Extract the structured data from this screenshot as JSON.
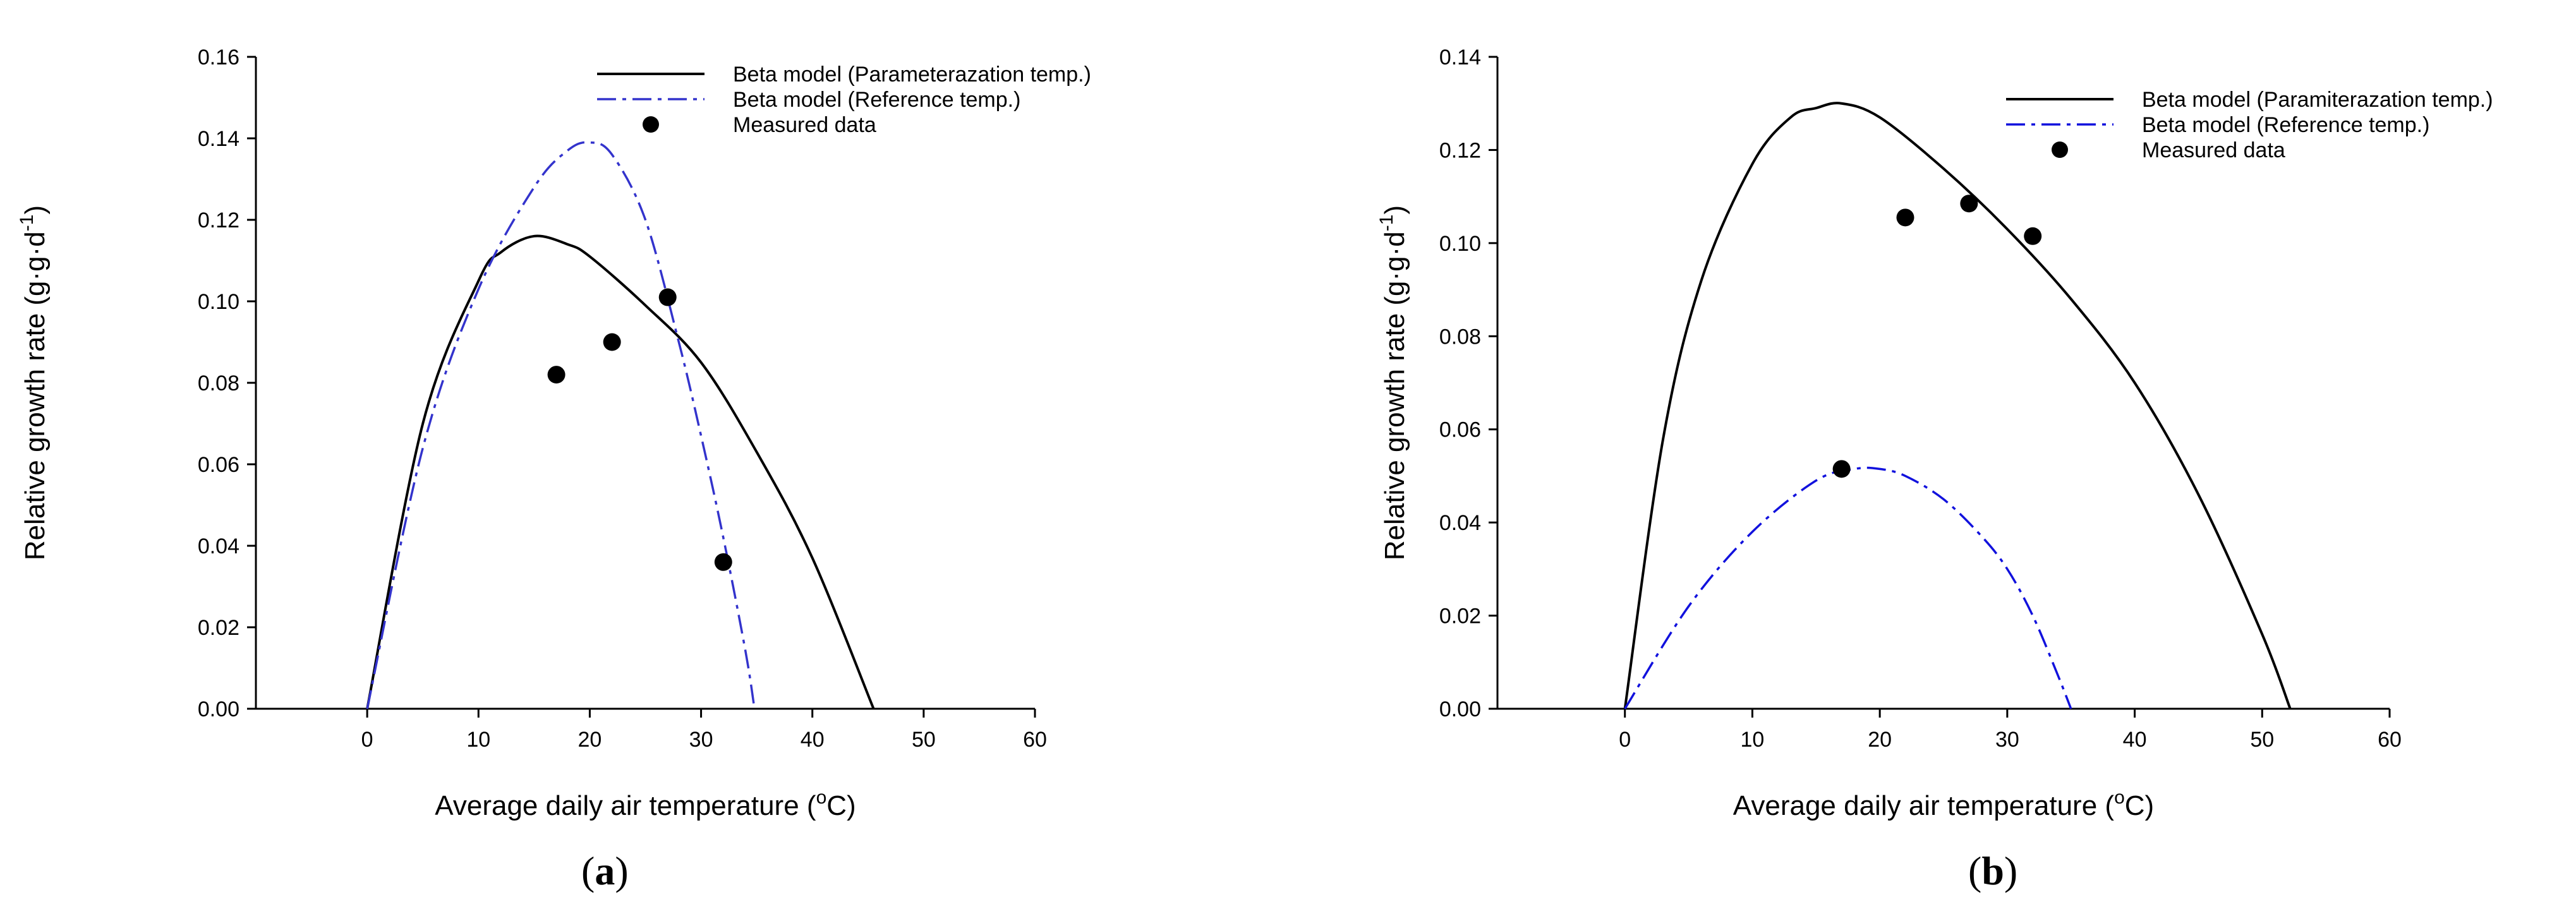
{
  "chart_data": [
    {
      "type": "line",
      "panel_label": "(a)",
      "panel_letter": "a",
      "xlabel": "Average daily air temperature (oC)",
      "xlabel_parts": [
        "Average daily air temperature (",
        "o",
        "C)"
      ],
      "ylabel": "Relative growth rate (g·g·d-1)",
      "ylabel_parts": [
        "Relative growth rate (g·g·d",
        "-1",
        ")"
      ],
      "xlim": [
        -10,
        60
      ],
      "ylim": [
        0,
        0.16
      ],
      "xticks": [
        0,
        10,
        20,
        30,
        40,
        50,
        60
      ],
      "xtick_labels": [
        "0",
        "10",
        "20",
        "30",
        "40",
        "50",
        "60"
      ],
      "yticks": [
        0,
        0.02,
        0.04,
        0.06,
        0.08,
        0.1,
        0.12,
        0.14,
        0.16
      ],
      "ytick_labels": [
        "0.00",
        "0.02",
        "0.04",
        "0.06",
        "0.08",
        "0.10",
        "0.12",
        "0.14",
        "0.16"
      ],
      "legend_position": "top-right",
      "grid": false,
      "series": [
        {
          "name": "Beta model (Parameterazation temp.)",
          "style": "solid",
          "color": "#000000",
          "x": [
            0,
            5,
            10,
            12,
            15,
            18,
            20,
            25,
            30,
            35,
            40,
            45.5
          ],
          "y": [
            0,
            0.07,
            0.105,
            0.112,
            0.116,
            0.114,
            0.111,
            0.099,
            0.085,
            0.063,
            0.037,
            0
          ]
        },
        {
          "name": "Beta model (Reference temp.)",
          "style": "dashdot",
          "color": "#3333cc",
          "x": [
            0,
            5,
            10,
            15,
            18,
            20,
            22,
            25,
            28,
            30,
            32,
            34,
            34.8
          ],
          "y": [
            0,
            0.064,
            0.103,
            0.128,
            0.137,
            0.139,
            0.136,
            0.12,
            0.09,
            0.067,
            0.042,
            0.014,
            0
          ]
        },
        {
          "name": "Measured data",
          "style": "markers",
          "color": "#000000",
          "x": [
            17,
            22,
            27,
            32
          ],
          "y": [
            0.082,
            0.09,
            0.101,
            0.036
          ]
        }
      ]
    },
    {
      "type": "line",
      "panel_label": "(b)",
      "panel_letter": "b",
      "xlabel": "Average daily air temperature (oC)",
      "xlabel_parts": [
        "Average daily air temperature (",
        "o",
        "C)"
      ],
      "ylabel": "Relative growth rate (g·g·d-1)",
      "ylabel_parts": [
        "Relative growth rate (g·g·d",
        "-1",
        ")"
      ],
      "xlim": [
        -10,
        60
      ],
      "ylim": [
        0,
        0.14
      ],
      "xticks": [
        0,
        10,
        20,
        30,
        40,
        50,
        60
      ],
      "xtick_labels": [
        "0",
        "10",
        "20",
        "30",
        "40",
        "50",
        "60"
      ],
      "yticks": [
        0,
        0.02,
        0.04,
        0.06,
        0.08,
        0.1,
        0.12,
        0.14
      ],
      "ytick_labels": [
        "0.00",
        "0.02",
        "0.04",
        "0.06",
        "0.08",
        "0.10",
        "0.12",
        "0.14"
      ],
      "legend_position": "top-right",
      "grid": false,
      "series": [
        {
          "name": "Beta model (Paramiterazation temp.)",
          "style": "solid",
          "color": "#000000",
          "x": [
            0,
            3,
            6,
            10,
            13,
            15,
            17,
            20,
            25,
            30,
            35,
            40,
            45,
            50,
            52.2
          ],
          "y": [
            0,
            0.058,
            0.092,
            0.117,
            0.127,
            0.129,
            0.13,
            0.127,
            0.116,
            0.103,
            0.088,
            0.07,
            0.046,
            0.016,
            0
          ]
        },
        {
          "name": "Beta model (Reference temp.)",
          "style": "dashdot",
          "color": "#1111dd",
          "x": [
            0,
            5,
            10,
            15,
            18,
            20,
            22,
            25,
            28,
            30,
            32,
            34,
            35
          ],
          "y": [
            0,
            0.022,
            0.038,
            0.049,
            0.0515,
            0.0515,
            0.05,
            0.045,
            0.037,
            0.03,
            0.02,
            0.007,
            0
          ]
        },
        {
          "name": "Measured data",
          "style": "markers",
          "color": "#000000",
          "x": [
            17,
            22,
            27,
            32
          ],
          "y": [
            0.0515,
            0.1055,
            0.1085,
            0.1015
          ]
        }
      ]
    }
  ]
}
